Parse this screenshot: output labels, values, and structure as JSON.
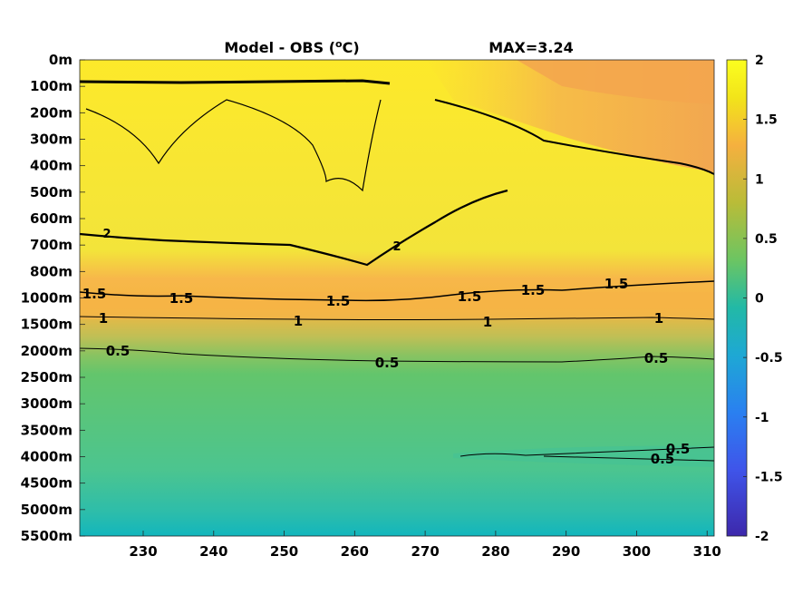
{
  "chart_data": {
    "type": "heatmap",
    "title": "Model - OBS (",
    "title_unit_sup": "o",
    "title_unit_end": "C)",
    "max_label": "MAX=3.24",
    "xlabel": "",
    "ylabel": "",
    "xlim": [
      221,
      311
    ],
    "x_ticks": [
      "230",
      "240",
      "250",
      "260",
      "270",
      "280",
      "290",
      "300",
      "310"
    ],
    "x_tick_values": [
      230,
      240,
      250,
      260,
      270,
      280,
      290,
      300,
      310
    ],
    "y_ticks": [
      "0m",
      "100m",
      "200m",
      "300m",
      "400m",
      "500m",
      "600m",
      "700m",
      "800m",
      "1000m",
      "1500m",
      "2000m",
      "2500m",
      "3000m",
      "3500m",
      "4000m",
      "4500m",
      "5000m",
      "5500m"
    ],
    "colorbar": {
      "range": [
        -2,
        2
      ],
      "ticks": [
        "2",
        "1.5",
        "1",
        "0.5",
        "0",
        "-0.5",
        "-1",
        "-1.5",
        "-2"
      ],
      "tick_values": [
        2,
        1.5,
        1,
        0.5,
        0,
        -0.5,
        -1,
        -1.5,
        -2
      ],
      "colormap": "parula"
    },
    "contour_levels": [
      0.5,
      1,
      1.5,
      2
    ],
    "contour_labels": [
      {
        "text": "1.5",
        "x": 223.5,
        "depth": "1000m"
      },
      {
        "text": "1.5",
        "x": 235,
        "depth": "1000m"
      },
      {
        "text": "1.5",
        "x": 257,
        "depth": "1000m"
      },
      {
        "text": "1.5",
        "x": 275.5,
        "depth": "1000m"
      },
      {
        "text": "1.5",
        "x": 284.5,
        "depth": "1000m"
      },
      {
        "text": "1.5",
        "x": 295,
        "depth": "1000m"
      },
      {
        "text": "1",
        "x": 224,
        "depth": "1500m"
      },
      {
        "text": "1",
        "x": 252,
        "depth": "1500m"
      },
      {
        "text": "1",
        "x": 278.5,
        "depth": "1500m"
      },
      {
        "text": "1",
        "x": 302.5,
        "depth": "1500m"
      },
      {
        "text": "0.5",
        "x": 226,
        "depth": "2000m"
      },
      {
        "text": "0.5",
        "x": 268.5,
        "depth": "2000m"
      },
      {
        "text": "0.5",
        "x": 302,
        "depth": "2000m"
      },
      {
        "text": "0.5",
        "x": 305,
        "depth": "4000m"
      },
      {
        "text": "0.5",
        "x": 303,
        "depth": "4000m"
      },
      {
        "text": "2",
        "x": 222,
        "depth": "700m"
      },
      {
        "text": "2",
        "x": 264,
        "depth": "700m"
      }
    ],
    "grid": false,
    "legend": "none"
  }
}
